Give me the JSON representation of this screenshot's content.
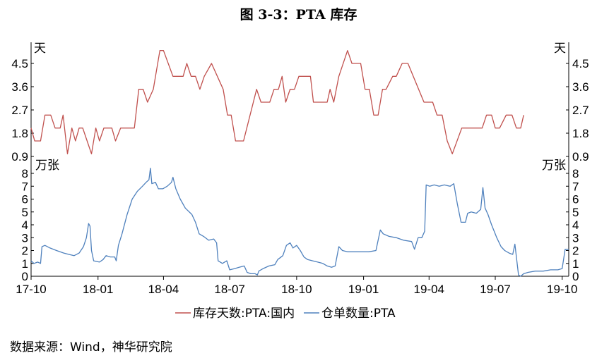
{
  "title": "图 3-3：PTA 库存",
  "source": "数据来源：Wind，神华研究院",
  "colors": {
    "inventory_days": "#c0504d",
    "warehouse_receipts": "#4f81bd",
    "axis": "#000000"
  },
  "chart_data": [
    {
      "type": "line",
      "panel": "top",
      "unit_label_left": "天",
      "unit_label_right": "天",
      "ylim": [
        0.9,
        5.2
      ],
      "yticks": [
        "0.9",
        "1.8",
        "2.7",
        "3.6",
        "4.5"
      ],
      "series": [
        {
          "name": "库存天数:PTA:国内",
          "color": "#c0504d",
          "points": [
            [
              "2017-10-01",
              2.0
            ],
            [
              "2017-10-06",
              1.5
            ],
            [
              "2017-10-14",
              1.5
            ],
            [
              "2017-10-20",
              2.5
            ],
            [
              "2017-10-28",
              2.5
            ],
            [
              "2017-11-03",
              2.0
            ],
            [
              "2017-11-10",
              2.0
            ],
            [
              "2017-11-14",
              2.5
            ],
            [
              "2017-11-20",
              1.0
            ],
            [
              "2017-11-26",
              2.0
            ],
            [
              "2017-12-01",
              1.5
            ],
            [
              "2017-12-06",
              2.0
            ],
            [
              "2017-12-11",
              2.0
            ],
            [
              "2017-12-17",
              1.5
            ],
            [
              "2017-12-23",
              1.0
            ],
            [
              "2017-12-29",
              2.0
            ],
            [
              "2018-01-03",
              1.5
            ],
            [
              "2018-01-09",
              2.0
            ],
            [
              "2018-01-20",
              2.0
            ],
            [
              "2018-01-25",
              1.5
            ],
            [
              "2018-02-01",
              2.0
            ],
            [
              "2018-02-20",
              2.0
            ],
            [
              "2018-02-26",
              3.5
            ],
            [
              "2018-03-04",
              3.5
            ],
            [
              "2018-03-10",
              3.0
            ],
            [
              "2018-03-18",
              3.5
            ],
            [
              "2018-03-27",
              5.0
            ],
            [
              "2018-04-01",
              5.0
            ],
            [
              "2018-04-14",
              4.0
            ],
            [
              "2018-04-28",
              4.0
            ],
            [
              "2018-05-03",
              4.5
            ],
            [
              "2018-05-09",
              4.0
            ],
            [
              "2018-05-15",
              4.0
            ],
            [
              "2018-05-21",
              3.5
            ],
            [
              "2018-05-27",
              4.0
            ],
            [
              "2018-06-06",
              4.5
            ],
            [
              "2018-06-22",
              3.5
            ],
            [
              "2018-06-28",
              2.5
            ],
            [
              "2018-07-03",
              2.5
            ],
            [
              "2018-07-09",
              1.5
            ],
            [
              "2018-07-20",
              1.5
            ],
            [
              "2018-08-07",
              3.5
            ],
            [
              "2018-08-13",
              3.0
            ],
            [
              "2018-08-25",
              3.0
            ],
            [
              "2018-08-31",
              3.5
            ],
            [
              "2018-09-06",
              3.5
            ],
            [
              "2018-09-11",
              4.0
            ],
            [
              "2018-09-16",
              3.0
            ],
            [
              "2018-09-22",
              3.5
            ],
            [
              "2018-09-28",
              3.5
            ],
            [
              "2018-10-04",
              4.0
            ],
            [
              "2018-10-20",
              4.0
            ],
            [
              "2018-10-24",
              3.0
            ],
            [
              "2018-11-12",
              3.0
            ],
            [
              "2018-11-16",
              3.5
            ],
            [
              "2018-11-21",
              3.0
            ],
            [
              "2018-11-28",
              4.0
            ],
            [
              "2018-12-10",
              5.0
            ],
            [
              "2018-12-16",
              4.5
            ],
            [
              "2018-12-28",
              4.5
            ],
            [
              "2019-01-03",
              3.5
            ],
            [
              "2019-01-09",
              3.5
            ],
            [
              "2019-01-15",
              2.5
            ],
            [
              "2019-01-21",
              2.5
            ],
            [
              "2019-01-27",
              3.5
            ],
            [
              "2019-02-01",
              3.5
            ],
            [
              "2019-02-10",
              4.0
            ],
            [
              "2019-02-15",
              4.0
            ],
            [
              "2019-02-23",
              4.5
            ],
            [
              "2019-03-03",
              4.5
            ],
            [
              "2019-03-25",
              3.0
            ],
            [
              "2019-04-06",
              3.0
            ],
            [
              "2019-04-12",
              2.5
            ],
            [
              "2019-04-19",
              2.5
            ],
            [
              "2019-04-26",
              1.5
            ],
            [
              "2019-05-03",
              1.0
            ],
            [
              "2019-05-16",
              2.0
            ],
            [
              "2019-06-13",
              2.0
            ],
            [
              "2019-06-19",
              2.5
            ],
            [
              "2019-06-26",
              2.5
            ],
            [
              "2019-07-01",
              2.0
            ],
            [
              "2019-07-07",
              2.0
            ],
            [
              "2019-07-16",
              2.5
            ],
            [
              "2019-07-24",
              2.5
            ],
            [
              "2019-07-30",
              2.0
            ],
            [
              "2019-08-05",
              2.0
            ],
            [
              "2019-08-09",
              2.5
            ]
          ]
        }
      ]
    },
    {
      "type": "line",
      "panel": "bottom",
      "unit_label_left": "万张",
      "unit_label_right": "万张",
      "ylim": [
        0,
        8
      ],
      "yticks": [
        "0",
        "1",
        "2",
        "3",
        "4",
        "5",
        "6",
        "7",
        "8"
      ],
      "xlim": [
        "2017-10-01",
        "2019-10-10"
      ],
      "xticks": [
        {
          "date": "2017-10-01",
          "label": "17-10"
        },
        {
          "date": "2018-01-01",
          "label": "18-01"
        },
        {
          "date": "2018-04-01",
          "label": "18-04"
        },
        {
          "date": "2018-07-01",
          "label": "18-07"
        },
        {
          "date": "2018-10-01",
          "label": "18-10"
        },
        {
          "date": "2019-01-01",
          "label": "19-01"
        },
        {
          "date": "2019-04-01",
          "label": "19-04"
        },
        {
          "date": "2019-07-01",
          "label": "19-07"
        },
        {
          "date": "2019-10-01",
          "label": "19-10"
        }
      ],
      "series": [
        {
          "name": "仓单数量:PTA",
          "color": "#4f81bd",
          "points": [
            [
              "2017-10-01",
              1.2
            ],
            [
              "2017-10-05",
              1.0
            ],
            [
              "2017-10-10",
              1.1
            ],
            [
              "2017-10-14",
              1.0
            ],
            [
              "2017-10-16",
              2.3
            ],
            [
              "2017-10-20",
              2.4
            ],
            [
              "2017-10-27",
              2.2
            ],
            [
              "2017-11-05",
              2.0
            ],
            [
              "2017-11-15",
              1.8
            ],
            [
              "2017-11-22",
              1.7
            ],
            [
              "2017-11-29",
              1.6
            ],
            [
              "2017-12-06",
              1.8
            ],
            [
              "2017-12-12",
              2.3
            ],
            [
              "2017-12-16",
              3.0
            ],
            [
              "2017-12-19",
              4.1
            ],
            [
              "2017-12-21",
              3.9
            ],
            [
              "2017-12-23",
              2.0
            ],
            [
              "2017-12-26",
              1.2
            ],
            [
              "2018-01-03",
              1.1
            ],
            [
              "2018-01-08",
              1.3
            ],
            [
              "2018-01-12",
              1.6
            ],
            [
              "2018-01-18",
              1.5
            ],
            [
              "2018-01-24",
              1.5
            ],
            [
              "2018-01-26",
              1.2
            ],
            [
              "2018-01-29",
              2.4
            ],
            [
              "2018-02-03",
              3.3
            ],
            [
              "2018-02-10",
              4.8
            ],
            [
              "2018-02-17",
              6.0
            ],
            [
              "2018-02-24",
              6.6
            ],
            [
              "2018-03-03",
              7.0
            ],
            [
              "2018-03-08",
              7.3
            ],
            [
              "2018-03-12",
              7.5
            ],
            [
              "2018-03-14",
              8.4
            ],
            [
              "2018-03-16",
              7.2
            ],
            [
              "2018-03-21",
              7.3
            ],
            [
              "2018-03-25",
              6.8
            ],
            [
              "2018-03-31",
              6.8
            ],
            [
              "2018-04-06",
              7.0
            ],
            [
              "2018-04-12",
              7.3
            ],
            [
              "2018-04-14",
              7.7
            ],
            [
              "2018-04-18",
              6.8
            ],
            [
              "2018-04-24",
              6.0
            ],
            [
              "2018-05-01",
              5.3
            ],
            [
              "2018-05-10",
              4.8
            ],
            [
              "2018-05-15",
              4.2
            ],
            [
              "2018-05-20",
              3.3
            ],
            [
              "2018-05-26",
              3.1
            ],
            [
              "2018-06-02",
              2.8
            ],
            [
              "2018-06-09",
              2.9
            ],
            [
              "2018-06-13",
              2.6
            ],
            [
              "2018-06-15",
              1.2
            ],
            [
              "2018-06-21",
              1.0
            ],
            [
              "2018-06-27",
              1.2
            ],
            [
              "2018-07-01",
              0.5
            ],
            [
              "2018-07-08",
              0.6
            ],
            [
              "2018-07-14",
              0.7
            ],
            [
              "2018-07-21",
              0.8
            ],
            [
              "2018-07-25",
              0.3
            ],
            [
              "2018-07-30",
              0.2
            ],
            [
              "2018-08-05",
              0.2
            ],
            [
              "2018-08-08",
              0.1
            ],
            [
              "2018-08-10",
              0.4
            ],
            [
              "2018-08-16",
              0.6
            ],
            [
              "2018-08-24",
              0.8
            ],
            [
              "2018-09-01",
              0.9
            ],
            [
              "2018-09-05",
              1.3
            ],
            [
              "2018-09-12",
              1.6
            ],
            [
              "2018-09-17",
              2.4
            ],
            [
              "2018-09-22",
              2.6
            ],
            [
              "2018-09-26",
              2.2
            ],
            [
              "2018-10-01",
              2.4
            ],
            [
              "2018-10-06",
              2.0
            ],
            [
              "2018-10-11",
              1.5
            ],
            [
              "2018-10-16",
              1.3
            ],
            [
              "2018-10-23",
              1.2
            ],
            [
              "2018-10-30",
              1.1
            ],
            [
              "2018-11-06",
              1.0
            ],
            [
              "2018-11-12",
              0.8
            ],
            [
              "2018-11-18",
              0.7
            ],
            [
              "2018-11-23",
              0.8
            ],
            [
              "2018-11-28",
              2.3
            ],
            [
              "2018-12-03",
              2.0
            ],
            [
              "2018-12-10",
              1.9
            ],
            [
              "2018-12-20",
              1.9
            ],
            [
              "2018-12-29",
              1.9
            ],
            [
              "2019-01-08",
              1.9
            ],
            [
              "2019-01-18",
              2.0
            ],
            [
              "2019-01-24",
              3.6
            ],
            [
              "2019-01-28",
              3.3
            ],
            [
              "2019-02-05",
              3.1
            ],
            [
              "2019-02-15",
              3.0
            ],
            [
              "2019-02-25",
              2.8
            ],
            [
              "2019-03-08",
              2.7
            ],
            [
              "2019-03-12",
              2.1
            ],
            [
              "2019-03-17",
              3.0
            ],
            [
              "2019-03-22",
              3.0
            ],
            [
              "2019-03-26",
              3.5
            ],
            [
              "2019-03-28",
              7.1
            ],
            [
              "2019-04-02",
              7.0
            ],
            [
              "2019-04-08",
              7.1
            ],
            [
              "2019-04-15",
              7.0
            ],
            [
              "2019-04-22",
              7.1
            ],
            [
              "2019-04-30",
              7.0
            ],
            [
              "2019-05-05",
              7.2
            ],
            [
              "2019-05-10",
              5.6
            ],
            [
              "2019-05-15",
              4.2
            ],
            [
              "2019-05-21",
              4.2
            ],
            [
              "2019-05-24",
              4.9
            ],
            [
              "2019-05-29",
              5.0
            ],
            [
              "2019-06-05",
              4.9
            ],
            [
              "2019-06-11",
              5.2
            ],
            [
              "2019-06-14",
              6.9
            ],
            [
              "2019-06-17",
              5.3
            ],
            [
              "2019-06-21",
              4.8
            ],
            [
              "2019-06-26",
              4.0
            ],
            [
              "2019-07-03",
              3.0
            ],
            [
              "2019-07-09",
              2.3
            ],
            [
              "2019-07-14",
              2.0
            ],
            [
              "2019-07-20",
              1.8
            ],
            [
              "2019-07-25",
              1.7
            ],
            [
              "2019-07-28",
              2.5
            ],
            [
              "2019-07-30",
              1.5
            ],
            [
              "2019-08-02",
              0.1
            ],
            [
              "2019-08-05",
              0.0
            ],
            [
              "2019-08-09",
              0.2
            ],
            [
              "2019-08-15",
              0.3
            ],
            [
              "2019-08-25",
              0.4
            ],
            [
              "2019-09-05",
              0.4
            ],
            [
              "2019-09-15",
              0.5
            ],
            [
              "2019-09-25",
              0.5
            ],
            [
              "2019-10-01",
              0.6
            ],
            [
              "2019-10-05",
              2.1
            ],
            [
              "2019-10-10",
              2.1
            ]
          ]
        }
      ]
    }
  ],
  "legend": [
    {
      "label": "库存天数:PTA:国内",
      "color": "#c0504d"
    },
    {
      "label": "仓单数量:PTA",
      "color": "#4f81bd"
    }
  ]
}
